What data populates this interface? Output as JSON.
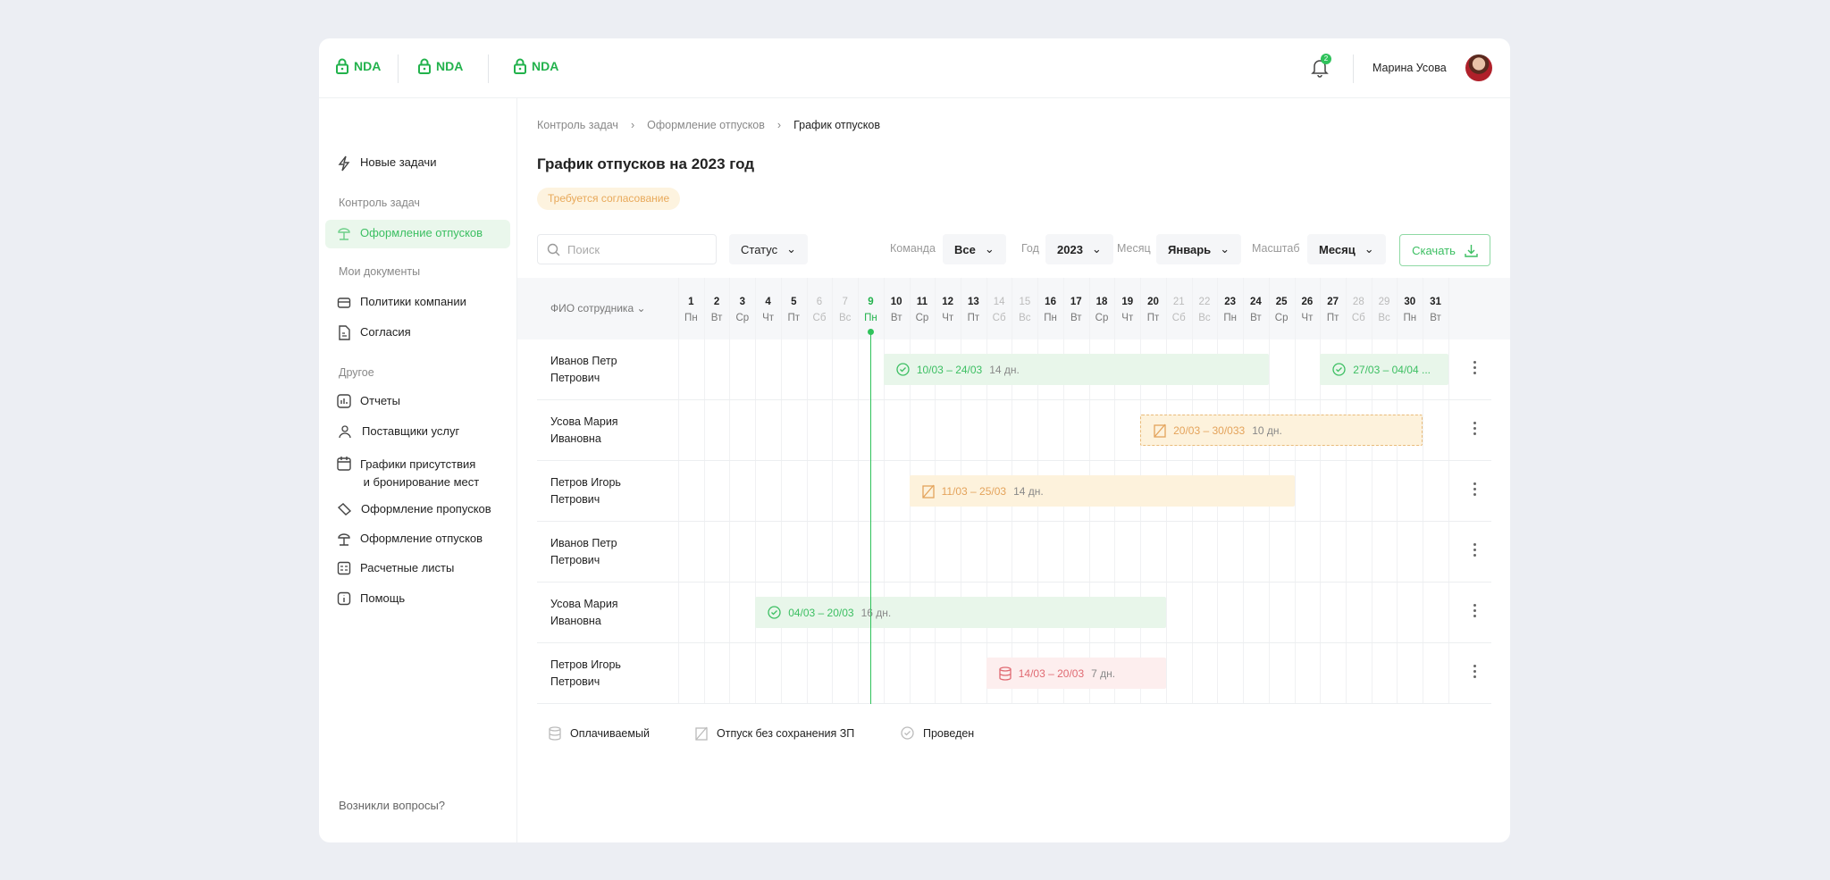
{
  "header": {
    "nda_items": [
      "NDA",
      "NDA",
      "NDA"
    ],
    "notifications": "2",
    "user_name": "Марина Усова"
  },
  "sidebar": {
    "new_tasks": "Новые задачи",
    "sections": {
      "control": "Контроль задач",
      "docs": "Мои документы",
      "other": "Другое"
    },
    "active": "Оформление отпусков",
    "docs_items": [
      "Политики компании",
      "Согласия"
    ],
    "other_items": [
      "Отчеты",
      "Поставщики услуг",
      "Графики присутствия",
      "и бронирование мест",
      "Оформление пропусков",
      "Оформление отпусков",
      "Расчетные листы",
      "Помощь"
    ],
    "footer": "Возникли вопросы?"
  },
  "breadcrumb": [
    "Контроль задач",
    "Оформление отпусков",
    "График отпусков"
  ],
  "page_title": "График отпусков на 2023 год",
  "badge": "Требуется согласование",
  "filters": {
    "search_placeholder": "Поиск",
    "status": "Статус",
    "team_label": "Команда",
    "team": "Все",
    "year_label": "Год",
    "year": "2023",
    "month_label": "Месяц",
    "month": "Январь",
    "scale_label": "Масштаб",
    "scale": "Месяц",
    "download": "Скачать"
  },
  "gantt": {
    "name_header": "ФИО сотрудника",
    "today": 9,
    "days": [
      [
        1,
        "Пн"
      ],
      [
        2,
        "Вт"
      ],
      [
        3,
        "Ср"
      ],
      [
        4,
        "Чт"
      ],
      [
        5,
        "Пт"
      ],
      [
        6,
        "Сб"
      ],
      [
        7,
        "Вс"
      ],
      [
        9,
        "Пн"
      ],
      [
        10,
        "Вт"
      ],
      [
        11,
        "Ср"
      ],
      [
        12,
        "Чт"
      ],
      [
        13,
        "Пт"
      ],
      [
        14,
        "Сб"
      ],
      [
        15,
        "Вс"
      ],
      [
        16,
        "Пн"
      ],
      [
        17,
        "Вт"
      ],
      [
        18,
        "Ср"
      ],
      [
        19,
        "Чт"
      ],
      [
        20,
        "Пт"
      ],
      [
        21,
        "Сб"
      ],
      [
        22,
        "Вс"
      ],
      [
        23,
        "Пн"
      ],
      [
        24,
        "Вт"
      ],
      [
        25,
        "Ср"
      ],
      [
        26,
        "Чт"
      ],
      [
        27,
        "Пт"
      ],
      [
        28,
        "Сб"
      ],
      [
        29,
        "Вс"
      ],
      [
        30,
        "Пн"
      ],
      [
        31,
        "Вт"
      ]
    ],
    "weekends": [
      6,
      7,
      14,
      15,
      21,
      22,
      28,
      29
    ],
    "rows": [
      {
        "name": [
          "Иванов Петр",
          "Петрович"
        ],
        "bars": [
          {
            "type": "done",
            "start": 10,
            "end": 24,
            "label": "10/03 – 24/03",
            "days": "14 дн."
          },
          {
            "type": "done",
            "start": 27,
            "end": 31,
            "label": "27/03 – 04/04 ...",
            "days": ""
          }
        ]
      },
      {
        "name": [
          "Усова Мария",
          "Ивановна"
        ],
        "bars": [
          {
            "type": "unpaid",
            "dashed": true,
            "start": 20,
            "end": 30,
            "label": "20/03 – 30/033",
            "days": "10 дн."
          }
        ]
      },
      {
        "name": [
          "Петров Игорь",
          "Петрович"
        ],
        "bars": [
          {
            "type": "unpaid",
            "start": 11,
            "end": 25,
            "label": "11/03 – 25/03",
            "days": "14 дн."
          }
        ]
      },
      {
        "name": [
          "Иванов Петр",
          "Петрович"
        ],
        "bars": []
      },
      {
        "name": [
          "Усова Мария",
          "Ивановна"
        ],
        "bars": [
          {
            "type": "done",
            "start": 4,
            "end": 20,
            "label": "04/03 – 20/03",
            "days": "16 дн."
          }
        ]
      },
      {
        "name": [
          "Петров Игорь",
          "Петрович"
        ],
        "bars": [
          {
            "type": "paid",
            "start": 14,
            "end": 20,
            "label": "14/03 – 20/03",
            "days": "7 дн."
          }
        ]
      }
    ]
  },
  "legend": [
    "Оплачиваемый",
    "Отпуск без сохранения ЗП",
    "Проведен"
  ],
  "colors": {
    "accent": "#22b24c",
    "done_bg": "#e8f6ea",
    "unpaid_bg": "#fdf2dc",
    "paid_bg": "#fdeeee"
  }
}
